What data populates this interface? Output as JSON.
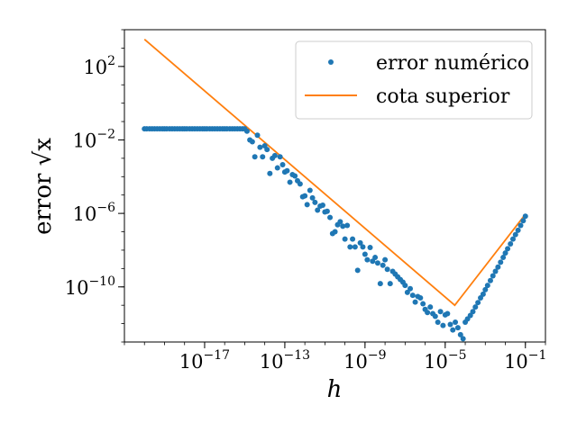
{
  "chart_data": {
    "type": "scatter",
    "xlabel": "h",
    "ylabel": "error √x",
    "xscale": "log",
    "yscale": "log",
    "xlim": [
      1e-21,
      1
    ],
    "ylim": [
      1e-13,
      10000.0
    ],
    "grid": false,
    "legend_position": "top-right",
    "x_tick_labels": [
      {
        "value": 1e-17,
        "base": "10",
        "exp": "−17"
      },
      {
        "value": 1e-13,
        "base": "10",
        "exp": "−13"
      },
      {
        "value": 1e-09,
        "base": "10",
        "exp": "−9"
      },
      {
        "value": 1e-05,
        "base": "10",
        "exp": "−5"
      },
      {
        "value": 0.1,
        "base": "10",
        "exp": "−1"
      }
    ],
    "y_tick_labels": [
      {
        "value": 100.0,
        "base": "10",
        "exp": "2"
      },
      {
        "value": 0.01,
        "base": "10",
        "exp": "−2"
      },
      {
        "value": 1e-06,
        "base": "10",
        "exp": "−6"
      },
      {
        "value": 1e-10,
        "base": "10",
        "exp": "−10"
      }
    ],
    "series": [
      {
        "name": "error numérico",
        "kind": "points",
        "color": "#1f77b4",
        "points": [
          [
            1e-20,
            0.04
          ],
          [
            1.3e-20,
            0.04
          ],
          [
            1.8e-20,
            0.04
          ],
          [
            2.4e-20,
            0.04
          ],
          [
            3.2e-20,
            0.04
          ],
          [
            4.3e-20,
            0.04
          ],
          [
            5.8e-20,
            0.04
          ],
          [
            7.8e-20,
            0.04
          ],
          [
            1e-19,
            0.04
          ],
          [
            1.3e-19,
            0.04
          ],
          [
            1.8e-19,
            0.04
          ],
          [
            2.4e-19,
            0.04
          ],
          [
            3.2e-19,
            0.04
          ],
          [
            4.3e-19,
            0.04
          ],
          [
            5.8e-19,
            0.04
          ],
          [
            7.8e-19,
            0.04
          ],
          [
            1e-18,
            0.04
          ],
          [
            1.3e-18,
            0.04
          ],
          [
            1.8e-18,
            0.04
          ],
          [
            2.4e-18,
            0.04
          ],
          [
            3.2e-18,
            0.04
          ],
          [
            4.3e-18,
            0.04
          ],
          [
            5.8e-18,
            0.04
          ],
          [
            7.8e-18,
            0.04
          ],
          [
            1e-17,
            0.04
          ],
          [
            1.3e-17,
            0.04
          ],
          [
            1.8e-17,
            0.04
          ],
          [
            2.4e-17,
            0.04
          ],
          [
            3.2e-17,
            0.04
          ],
          [
            4.3e-17,
            0.04
          ],
          [
            5.8e-17,
            0.04
          ],
          [
            7.8e-17,
            0.04
          ],
          [
            1e-16,
            0.04
          ],
          [
            1.3e-16,
            0.04
          ],
          [
            1.8e-16,
            0.04
          ],
          [
            2.4e-16,
            0.04
          ],
          [
            3.2e-16,
            0.04
          ],
          [
            4.3e-16,
            0.04
          ],
          [
            5.8e-16,
            0.04
          ],
          [
            7.8e-16,
            0.04
          ],
          [
            1e-15,
            0.04
          ],
          [
            1.3e-15,
            0.03
          ],
          [
            1.8e-15,
            0.01
          ],
          [
            2.4e-15,
            0.008
          ],
          [
            3.2e-15,
            0.0012
          ],
          [
            4.3e-15,
            0.018
          ],
          [
            5.8e-15,
            0.004
          ],
          [
            7.8e-15,
            0.0012
          ],
          [
            1e-14,
            0.0048
          ],
          [
            1.3e-14,
            0.003
          ],
          [
            1.8e-14,
            0.00015
          ],
          [
            2.4e-14,
            0.001
          ],
          [
            3.2e-14,
            0.0014
          ],
          [
            4.3e-14,
            0.0003
          ],
          [
            5.8e-14,
            0.0012
          ],
          [
            7.8e-14,
            0.00045
          ],
          [
            1e-13,
            0.00018
          ],
          [
            1.3e-13,
            0.00021
          ],
          [
            1.8e-13,
            5e-05
          ],
          [
            2.4e-13,
            0.00013
          ],
          [
            3.2e-13,
            0.00011
          ],
          [
            4.3e-13,
            6e-05
          ],
          [
            5.8e-13,
            4e-05
          ],
          [
            7.8e-13,
            8e-06
          ],
          [
            1e-12,
            9e-06
          ],
          [
            1.3e-12,
            3e-06
          ],
          [
            1.8e-12,
            1.8e-05
          ],
          [
            2.4e-12,
            7e-06
          ],
          [
            3.2e-12,
            4e-06
          ],
          [
            4.3e-12,
            1.5e-06
          ],
          [
            5.8e-12,
            2.5e-06
          ],
          [
            7.8e-12,
            2.8e-06
          ],
          [
            1e-11,
            1.2e-06
          ],
          [
            1.3e-11,
            1.3e-06
          ],
          [
            1.8e-11,
            6e-07
          ],
          [
            2.4e-11,
            8e-08
          ],
          [
            3.2e-11,
            1e-07
          ],
          [
            4.3e-11,
            2.4e-07
          ],
          [
            5.8e-11,
            3.5e-07
          ],
          [
            7.8e-11,
            2e-07
          ],
          [
            1e-10,
            4e-08
          ],
          [
            1.3e-10,
            2.2e-07
          ],
          [
            1.8e-10,
            1.5e-08
          ],
          [
            2.4e-10,
            4e-08
          ],
          [
            3.2e-10,
            1.5e-08
          ],
          [
            4.3e-10,
            8e-10
          ],
          [
            5.8e-10,
            2.5e-08
          ],
          [
            7.8e-10,
            1.5e-08
          ],
          [
            1e-09,
            6e-09
          ],
          [
            1.3e-09,
            3e-09
          ],
          [
            1.8e-09,
            1.4e-08
          ],
          [
            2.4e-09,
            2.5e-09
          ],
          [
            3.2e-09,
            4e-09
          ],
          [
            4.3e-09,
            2e-09
          ],
          [
            5.8e-09,
            1.5e-10
          ],
          [
            7.8e-09,
            1.5e-09
          ],
          [
            1e-08,
            3e-09
          ],
          [
            1.3e-08,
            9e-10
          ],
          [
            1.8e-08,
            1.5e-10
          ],
          [
            2.4e-08,
            7e-10
          ],
          [
            3.2e-08,
            5e-10
          ],
          [
            4.3e-08,
            3.5e-10
          ],
          [
            5.8e-08,
            2.5e-10
          ],
          [
            7.8e-08,
            1.8e-10
          ],
          [
            1e-07,
            1.2e-10
          ],
          [
            1.3e-07,
            5e-11
          ],
          [
            1.8e-07,
            8e-11
          ],
          [
            2.4e-07,
            3.5e-11
          ],
          [
            3.2e-07,
            1.5e-11
          ],
          [
            4.3e-07,
            3e-11
          ],
          [
            5.8e-07,
            2.5e-11
          ],
          [
            7.8e-07,
            1.2e-11
          ],
          [
            1e-06,
            6e-12
          ],
          [
            1.3e-06,
            4e-12
          ],
          [
            1.8e-06,
            8e-12
          ],
          [
            2.4e-06,
            3.5e-12
          ],
          [
            3.2e-06,
            2.5e-12
          ],
          [
            4.3e-06,
            1.2e-12
          ],
          [
            5.8e-06,
            4.5e-12
          ],
          [
            7.8e-06,
            8e-13
          ],
          [
            1e-05,
            3e-12
          ],
          [
            1.3e-05,
            3.5e-12
          ],
          [
            1.8e-05,
            9e-13
          ],
          [
            2.4e-05,
            4.5e-13
          ],
          [
            3.2e-05,
            1.2e-12
          ],
          [
            4.3e-05,
            6e-13
          ],
          [
            5.8e-05,
            2.5e-13
          ],
          [
            7.8e-05,
            1.5e-13
          ],
          [
            0.0001,
            1.2e-12
          ],
          [
            0.00013,
            1.8e-12
          ],
          [
            0.00018,
            2.8e-12
          ],
          [
            0.00024,
            4.5e-12
          ],
          [
            0.00032,
            8e-12
          ],
          [
            0.00043,
            1.4e-11
          ],
          [
            0.00058,
            2.5e-11
          ],
          [
            0.00078,
            4e-11
          ],
          [
            0.001,
            7e-11
          ],
          [
            0.0013,
            1.2e-10
          ],
          [
            0.0018,
            2.2e-10
          ],
          [
            0.0024,
            4e-10
          ],
          [
            0.0032,
            7e-10
          ],
          [
            0.0043,
            1.2e-09
          ],
          [
            0.0058,
            2.2e-09
          ],
          [
            0.0078,
            4e-09
          ],
          [
            0.01,
            7e-09
          ],
          [
            0.013,
            1.2e-08
          ],
          [
            0.018,
            2.2e-08
          ],
          [
            0.024,
            4e-08
          ],
          [
            0.032,
            7e-08
          ],
          [
            0.043,
            1.2e-07
          ],
          [
            0.058,
            2.2e-07
          ],
          [
            0.078,
            4e-07
          ],
          [
            0.1,
            7e-07
          ]
        ]
      },
      {
        "name": "cota superior",
        "kind": "line",
        "color": "#ff7f0e",
        "points": [
          [
            1e-20,
            3000
          ],
          [
            3e-05,
            1e-11
          ],
          [
            0.1,
            9e-07
          ]
        ]
      }
    ]
  }
}
